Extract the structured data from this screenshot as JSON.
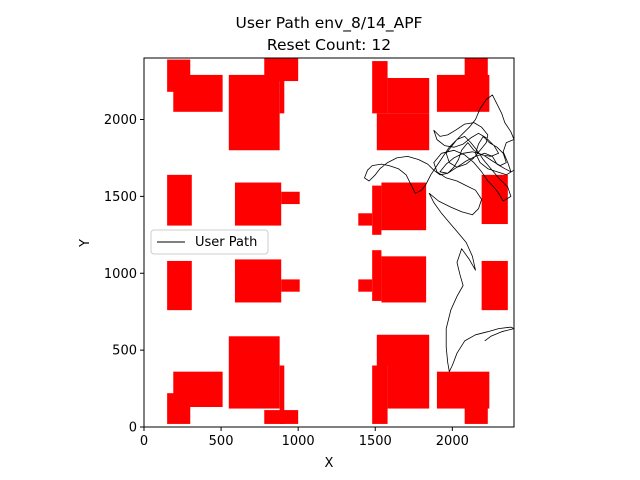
{
  "chart_data": {
    "type": "line",
    "title": "User Path env_8/14_APF",
    "subtitle": "Reset Count: 12",
    "xlabel": "X",
    "ylabel": "Y",
    "xlim": [
      0,
      2400
    ],
    "ylim": [
      0,
      2400
    ],
    "xticks": [
      0,
      500,
      1000,
      1500,
      2000
    ],
    "yticks": [
      0,
      500,
      1000,
      1500,
      2000
    ],
    "grid": false,
    "legend": {
      "placement": "center-left",
      "entries": [
        "User Path"
      ]
    },
    "obstacle_color": "#ff0000",
    "path_color": "#000000",
    "obstacles": [
      [
        150,
        1310,
        310,
        1640
      ],
      [
        150,
        760,
        310,
        1080
      ],
      [
        590,
        1310,
        890,
        1590
      ],
      [
        890,
        1450,
        1010,
        1530
      ],
      [
        590,
        810,
        890,
        1090
      ],
      [
        890,
        880,
        1010,
        960
      ],
      [
        1390,
        1310,
        1480,
        1390
      ],
      [
        1480,
        1250,
        1540,
        1570
      ],
      [
        1540,
        1280,
        1830,
        1590
      ],
      [
        1390,
        880,
        1480,
        960
      ],
      [
        1480,
        820,
        1540,
        1150
      ],
      [
        1540,
        810,
        1830,
        1110
      ],
      [
        2190,
        1320,
        2360,
        1640
      ],
      [
        2190,
        760,
        2360,
        1080
      ],
      [
        150,
        2180,
        300,
        2390
      ],
      [
        190,
        2050,
        510,
        2290
      ],
      [
        550,
        1800,
        880,
        2290
      ],
      [
        880,
        2040,
        910,
        2330
      ],
      [
        780,
        2250,
        1000,
        2400
      ],
      [
        1480,
        2040,
        1580,
        2380
      ],
      [
        1580,
        2040,
        1850,
        2270
      ],
      [
        1510,
        1800,
        1850,
        2040
      ],
      [
        1900,
        2050,
        2240,
        2290
      ],
      [
        2080,
        2230,
        2230,
        2400
      ],
      [
        150,
        20,
        300,
        220
      ],
      [
        190,
        130,
        510,
        360
      ],
      [
        550,
        120,
        880,
        590
      ],
      [
        880,
        20,
        910,
        400
      ],
      [
        780,
        20,
        1000,
        110
      ],
      [
        1480,
        20,
        1580,
        400
      ],
      [
        1580,
        120,
        1850,
        400
      ],
      [
        1510,
        400,
        1850,
        600
      ],
      [
        1900,
        120,
        2240,
        360
      ],
      [
        2080,
        20,
        2230,
        130
      ]
    ],
    "path": [
      [
        2210,
        560
      ],
      [
        2250,
        590
      ],
      [
        2320,
        620
      ],
      [
        2400,
        640
      ],
      [
        2380,
        650
      ],
      [
        2300,
        640
      ],
      [
        2230,
        620
      ],
      [
        2150,
        600
      ],
      [
        2080,
        560
      ],
      [
        2030,
        480
      ],
      [
        2000,
        400
      ],
      [
        1980,
        360
      ],
      [
        1970,
        420
      ],
      [
        1960,
        520
      ],
      [
        1960,
        640
      ],
      [
        1990,
        760
      ],
      [
        2030,
        850
      ],
      [
        2070,
        920
      ],
      [
        2050,
        990
      ],
      [
        2030,
        1070
      ],
      [
        2060,
        1160
      ],
      [
        2110,
        1090
      ],
      [
        2150,
        1020
      ],
      [
        2130,
        1110
      ],
      [
        2090,
        1200
      ],
      [
        2040,
        1260
      ],
      [
        1980,
        1330
      ],
      [
        1930,
        1390
      ],
      [
        1880,
        1460
      ],
      [
        1850,
        1520
      ],
      [
        1910,
        1470
      ],
      [
        1990,
        1430
      ],
      [
        2060,
        1400
      ],
      [
        2130,
        1380
      ],
      [
        2170,
        1420
      ],
      [
        2190,
        1480
      ],
      [
        2150,
        1540
      ],
      [
        2090,
        1570
      ],
      [
        2030,
        1600
      ],
      [
        1960,
        1620
      ],
      [
        1900,
        1660
      ],
      [
        1880,
        1720
      ],
      [
        1930,
        1780
      ],
      [
        2010,
        1800
      ],
      [
        2080,
        1770
      ],
      [
        2140,
        1720
      ],
      [
        2190,
        1660
      ],
      [
        2230,
        1600
      ],
      [
        2270,
        1560
      ],
      [
        2300,
        1520
      ],
      [
        2330,
        1470
      ],
      [
        2380,
        1500
      ],
      [
        2360,
        1560
      ],
      [
        2300,
        1620
      ],
      [
        2250,
        1680
      ],
      [
        2200,
        1740
      ],
      [
        2160,
        1800
      ],
      [
        2120,
        1850
      ],
      [
        2080,
        1890
      ],
      [
        2030,
        1870
      ],
      [
        1980,
        1820
      ],
      [
        1940,
        1760
      ],
      [
        1900,
        1700
      ],
      [
        1860,
        1640
      ],
      [
        1830,
        1580
      ],
      [
        1800,
        1540
      ],
      [
        1760,
        1520
      ],
      [
        1730,
        1580
      ],
      [
        1700,
        1640
      ],
      [
        1650,
        1680
      ],
      [
        1590,
        1700
      ],
      [
        1540,
        1710
      ],
      [
        1480,
        1700
      ],
      [
        1450,
        1670
      ],
      [
        1430,
        1620
      ],
      [
        1460,
        1600
      ],
      [
        1500,
        1640
      ],
      [
        1530,
        1680
      ],
      [
        1580,
        1720
      ],
      [
        1640,
        1750
      ],
      [
        1710,
        1760
      ],
      [
        1780,
        1740
      ],
      [
        1840,
        1710
      ],
      [
        1880,
        1670
      ],
      [
        1920,
        1640
      ],
      [
        1970,
        1650
      ],
      [
        2030,
        1690
      ],
      [
        2090,
        1730
      ],
      [
        2150,
        1760
      ],
      [
        2210,
        1780
      ],
      [
        2260,
        1760
      ],
      [
        2290,
        1710
      ],
      [
        2340,
        1680
      ],
      [
        2380,
        1660
      ],
      [
        2360,
        1720
      ],
      [
        2330,
        1790
      ],
      [
        2350,
        1850
      ],
      [
        2400,
        1870
      ],
      [
        2380,
        1920
      ],
      [
        2340,
        1980
      ],
      [
        2320,
        2040
      ],
      [
        2290,
        2100
      ],
      [
        2260,
        2160
      ],
      [
        2220,
        2130
      ],
      [
        2180,
        2070
      ],
      [
        2150,
        2000
      ],
      [
        2110,
        1950
      ],
      [
        2070,
        1910
      ],
      [
        2030,
        1870
      ],
      [
        1990,
        1820
      ],
      [
        1960,
        1780
      ],
      [
        1980,
        1720
      ],
      [
        2030,
        1690
      ],
      [
        2090,
        1710
      ],
      [
        2140,
        1750
      ],
      [
        2180,
        1800
      ],
      [
        2220,
        1850
      ],
      [
        2230,
        1900
      ],
      [
        2190,
        1950
      ],
      [
        2140,
        1980
      ],
      [
        2080,
        1970
      ],
      [
        2020,
        1930
      ],
      [
        1970,
        1900
      ],
      [
        1920,
        1890
      ],
      [
        1880,
        1930
      ],
      [
        1900,
        1870
      ],
      [
        1950,
        1830
      ],
      [
        2010,
        1820
      ],
      [
        2070,
        1840
      ],
      [
        2120,
        1880
      ],
      [
        2170,
        1910
      ],
      [
        2220,
        1880
      ],
      [
        2270,
        1830
      ],
      [
        2300,
        1780
      ],
      [
        2250,
        1760
      ],
      [
        2190,
        1770
      ],
      [
        2140,
        1800
      ],
      [
        2100,
        1850
      ],
      [
        2060,
        1800
      ],
      [
        2040,
        1740
      ],
      [
        2010,
        1690
      ],
      [
        1970,
        1650
      ],
      [
        1920,
        1660
      ],
      [
        1960,
        1710
      ],
      [
        2010,
        1750
      ],
      [
        2070,
        1780
      ],
      [
        2130,
        1790
      ],
      [
        2200,
        1770
      ],
      [
        2260,
        1730
      ],
      [
        2310,
        1700
      ],
      [
        2350,
        1720
      ],
      [
        2330,
        1780
      ],
      [
        2290,
        1820
      ],
      [
        2240,
        1850
      ],
      [
        2200,
        1890
      ],
      [
        2170,
        1840
      ],
      [
        2150,
        1780
      ],
      [
        2180,
        1720
      ],
      [
        2230,
        1680
      ],
      [
        2290,
        1660
      ],
      [
        2350,
        1640
      ],
      [
        2400,
        1670
      ]
    ]
  }
}
